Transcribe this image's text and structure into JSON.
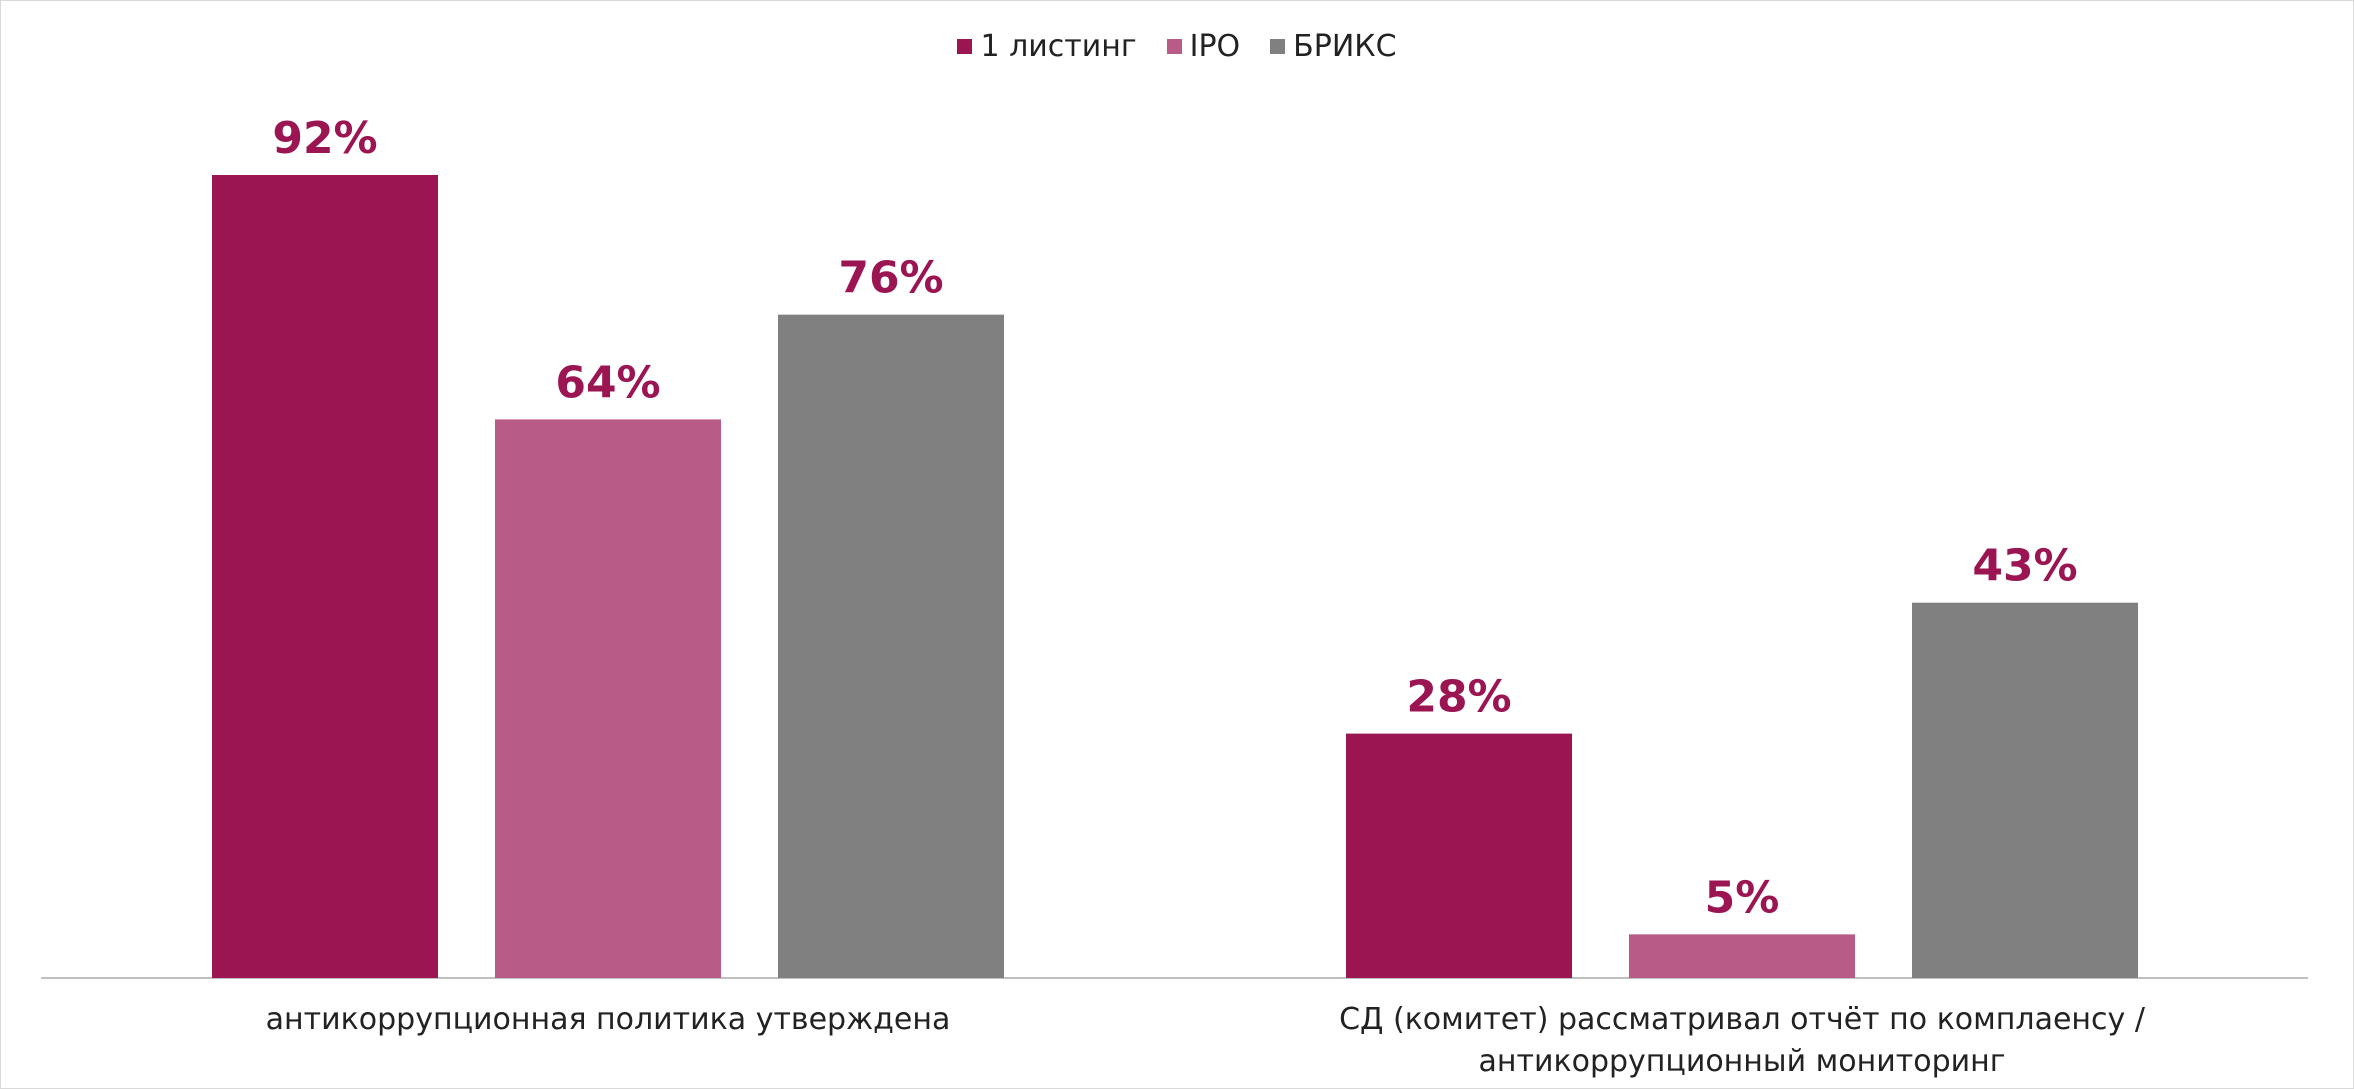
{
  "chart_data": {
    "type": "bar",
    "categories": [
      "антикоррупционная политика утверждена",
      "СД (комитет) рассматривал отчёт по комплаенсу / антикоррупционный мониторинг"
    ],
    "series": [
      {
        "name": "1 листинг",
        "color": "#9b1552",
        "values": [
          92,
          28
        ],
        "value_labels": [
          "92%",
          "28%"
        ]
      },
      {
        "name": "IPO",
        "color": "#b85c87",
        "values": [
          64,
          5
        ],
        "value_labels": [
          "64%",
          "5%"
        ]
      },
      {
        "name": "БРИКС",
        "color": "#808080",
        "values": [
          76,
          43
        ],
        "value_labels": [
          "76%",
          "43%"
        ]
      }
    ],
    "legend": "top",
    "value_label_color": "#9b1552"
  }
}
